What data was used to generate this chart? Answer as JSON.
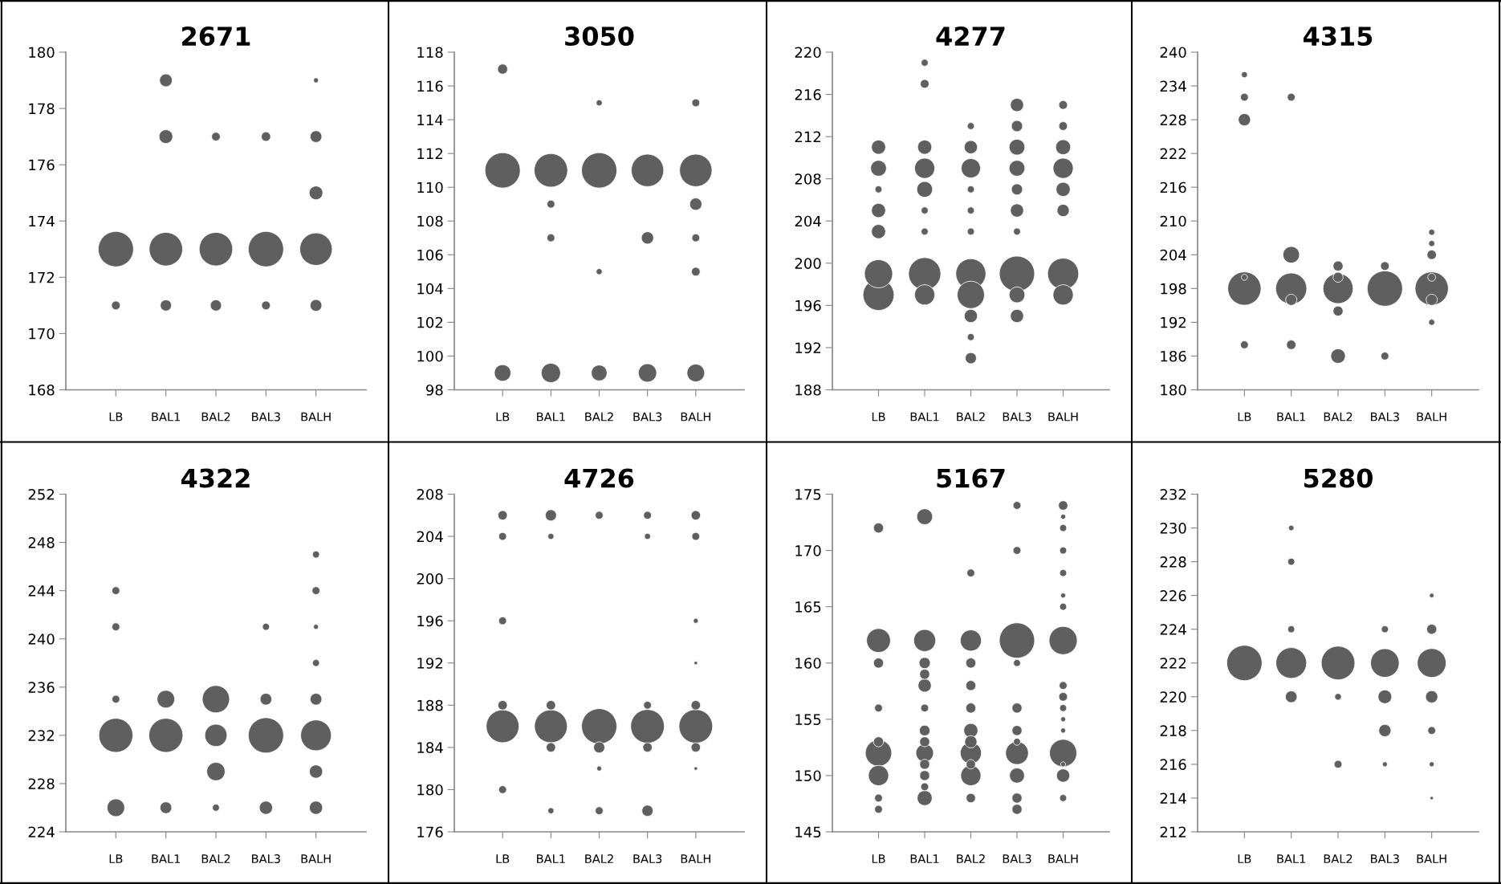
{
  "chart_data": [
    {
      "type": "bubble",
      "title": "2671",
      "categories": [
        "LB",
        "BAL1",
        "BAL2",
        "BAL3",
        "BALH"
      ],
      "ylim": [
        168,
        180
      ],
      "yticks": [
        168,
        170,
        172,
        174,
        176,
        178,
        180
      ],
      "grid": false,
      "series": [
        {
          "color": "#5f5f5f",
          "x": [
            "LB",
            "LB",
            "BAL1",
            "BAL1",
            "BAL1",
            "BAL1",
            "BAL2",
            "BAL2",
            "BAL2",
            "BAL3",
            "BAL3",
            "BAL3",
            "BALH",
            "BALH",
            "BALH",
            "BALH",
            "BALH"
          ],
          "values": [
            173,
            171,
            179,
            177,
            173,
            171,
            177,
            173,
            171,
            177,
            173,
            171,
            179,
            177,
            175,
            173,
            171
          ],
          "sizes": [
            1,
            0.06,
            0.13,
            0.15,
            0.9,
            0.1,
            0.06,
            0.9,
            0.1,
            0.07,
            1,
            0.06,
            0.02,
            0.11,
            0.15,
            0.85,
            0.11
          ]
        }
      ]
    },
    {
      "type": "bubble",
      "title": "3050",
      "categories": [
        "LB",
        "BAL1",
        "BAL2",
        "BAL3",
        "BALH"
      ],
      "ylim": [
        98,
        118
      ],
      "yticks": [
        98,
        100,
        102,
        104,
        106,
        108,
        110,
        112,
        114,
        116,
        118
      ],
      "grid": false,
      "series": [
        {
          "color": "#5f5f5f",
          "x": [
            "LB",
            "LB",
            "LB",
            "BAL1",
            "BAL1",
            "BAL1",
            "BAL1",
            "BAL2",
            "BAL2",
            "BAL2",
            "BAL2",
            "BAL3",
            "BAL3",
            "BAL3",
            "BALH",
            "BALH",
            "BALH",
            "BALH",
            "BALH",
            "BALH"
          ],
          "values": [
            117,
            111,
            99,
            111,
            109,
            107,
            99,
            115,
            111,
            105,
            99,
            111,
            107,
            99,
            115,
            111,
            109,
            107,
            105,
            99
          ],
          "sizes": [
            0.08,
            1,
            0.22,
            0.9,
            0.05,
            0.05,
            0.3,
            0.03,
            1,
            0.03,
            0.2,
            0.85,
            0.12,
            0.27,
            0.05,
            0.85,
            0.12,
            0.05,
            0.06,
            0.25
          ]
        }
      ]
    },
    {
      "type": "bubble",
      "title": "4277",
      "categories": [
        "LB",
        "BAL1",
        "BAL2",
        "BAL3",
        "BALH"
      ],
      "ylim": [
        188,
        220
      ],
      "yticks": [
        188,
        192,
        196,
        200,
        204,
        208,
        212,
        216,
        220
      ],
      "grid": false,
      "series": [
        {
          "color": "#5f5f5f",
          "x": [
            "LB",
            "LB",
            "LB",
            "LB",
            "LB",
            "LB",
            "LB",
            "BAL1",
            "BAL1",
            "BAL1",
            "BAL1",
            "BAL1",
            "BAL1",
            "BAL1",
            "BAL1",
            "BAL1",
            "BAL2",
            "BAL2",
            "BAL2",
            "BAL2",
            "BAL2",
            "BAL2",
            "BAL2",
            "BAL2",
            "BAL2",
            "BAL2",
            "BAL2",
            "BAL3",
            "BAL3",
            "BAL3",
            "BAL3",
            "BAL3",
            "BAL3",
            "BAL3",
            "BAL3",
            "BAL3",
            "BAL3",
            "BALH",
            "BALH",
            "BALH",
            "BALH",
            "BALH",
            "BALH",
            "BALH",
            "BALH"
          ],
          "values": [
            211,
            209,
            207,
            205,
            203,
            199,
            197,
            219,
            217,
            211,
            209,
            207,
            205,
            203,
            199,
            197,
            213,
            211,
            209,
            207,
            205,
            203,
            199,
            197,
            195,
            193,
            191,
            215,
            213,
            211,
            209,
            207,
            205,
            203,
            199,
            197,
            195,
            215,
            213,
            211,
            209,
            207,
            205,
            199,
            197
          ],
          "sizes": [
            0.16,
            0.2,
            0.04,
            0.16,
            0.16,
            0.64,
            0.78,
            0.04,
            0.06,
            0.16,
            0.33,
            0.2,
            0.04,
            0.04,
            0.84,
            0.33,
            0.04,
            0.14,
            0.3,
            0.04,
            0.04,
            0.04,
            0.73,
            0.6,
            0.14,
            0.04,
            0.1,
            0.14,
            0.1,
            0.2,
            0.2,
            0.1,
            0.14,
            0.04,
            1,
            0.2,
            0.14,
            0.06,
            0.06,
            0.18,
            0.33,
            0.16,
            0.12,
            0.78,
            0.33
          ]
        }
      ]
    },
    {
      "type": "bubble",
      "title": "4315",
      "categories": [
        "LB",
        "BAL1",
        "BAL2",
        "BAL3",
        "BALH"
      ],
      "ylim": [
        180,
        240
      ],
      "yticks": [
        180,
        186,
        192,
        198,
        204,
        210,
        216,
        222,
        228,
        234,
        240
      ],
      "grid": false,
      "series": [
        {
          "color": "#5f5f5f",
          "x": [
            "LB",
            "LB",
            "LB",
            "LB",
            "LB",
            "LB",
            "BAL1",
            "BAL1",
            "BAL1",
            "BAL1",
            "BAL1",
            "BAL2",
            "BAL2",
            "BAL2",
            "BAL2",
            "BAL2",
            "BAL3",
            "BAL3",
            "BAL3",
            "BALH",
            "BALH",
            "BALH",
            "BALH",
            "BALH",
            "BALH",
            "BALH"
          ],
          "values": [
            236,
            232,
            228,
            200,
            198,
            188,
            232,
            204,
            198,
            196,
            188,
            202,
            200,
            198,
            194,
            186,
            202,
            198,
            186,
            208,
            206,
            204,
            200,
            198,
            196,
            192
          ],
          "sizes": [
            0.03,
            0.05,
            0.12,
            0.03,
            0.89,
            0.05,
            0.05,
            0.22,
            0.78,
            0.1,
            0.07,
            0.08,
            0.08,
            0.73,
            0.08,
            0.17,
            0.06,
            1,
            0.05,
            0.03,
            0.03,
            0.07,
            0.05,
            0.89,
            0.1,
            0.03
          ]
        }
      ]
    },
    {
      "type": "bubble",
      "title": "4322",
      "categories": [
        "LB",
        "BAL1",
        "BAL2",
        "BAL3",
        "BALH"
      ],
      "ylim": [
        224,
        252
      ],
      "yticks": [
        224,
        228,
        232,
        236,
        240,
        244,
        248,
        252
      ],
      "grid": false,
      "series": [
        {
          "color": "#5f5f5f",
          "x": [
            "LB",
            "LB",
            "LB",
            "LB",
            "LB",
            "BAL1",
            "BAL1",
            "BAL1",
            "BAL2",
            "BAL2",
            "BAL2",
            "BAL2",
            "BAL3",
            "BAL3",
            "BAL3",
            "BAL3",
            "BALH",
            "BALH",
            "BALH",
            "BALH",
            "BALH",
            "BALH",
            "BALH",
            "BALH"
          ],
          "values": [
            244,
            241,
            235,
            232,
            226,
            235,
            232,
            226,
            235,
            232,
            229,
            226,
            241,
            235,
            232,
            226,
            247,
            244,
            241,
            238,
            235,
            232,
            229,
            226
          ],
          "sizes": [
            0.05,
            0.05,
            0.05,
            0.93,
            0.25,
            0.25,
            0.93,
            0.11,
            0.6,
            0.4,
            0.27,
            0.04,
            0.04,
            0.11,
            1,
            0.14,
            0.04,
            0.05,
            0.02,
            0.04,
            0.11,
            0.76,
            0.14,
            0.14
          ]
        }
      ]
    },
    {
      "type": "bubble",
      "title": "4726",
      "categories": [
        "LB",
        "BAL1",
        "BAL2",
        "BAL3",
        "BALH"
      ],
      "ylim": [
        176,
        208
      ],
      "yticks": [
        176,
        180,
        184,
        188,
        192,
        196,
        200,
        204,
        208
      ],
      "grid": false,
      "series": [
        {
          "color": "#5f5f5f",
          "x": [
            "LB",
            "LB",
            "LB",
            "LB",
            "LB",
            "LB",
            "BAL1",
            "BAL1",
            "BAL1",
            "BAL1",
            "BAL1",
            "BAL1",
            "BAL2",
            "BAL2",
            "BAL2",
            "BAL2",
            "BAL2",
            "BAL3",
            "BAL3",
            "BAL3",
            "BAL3",
            "BAL3",
            "BAL3",
            "BALH",
            "BALH",
            "BALH",
            "BALH",
            "BALH",
            "BALH",
            "BALH",
            "BALH"
          ],
          "values": [
            206,
            204,
            196,
            188,
            186,
            180,
            206,
            204,
            188,
            186,
            184,
            178,
            206,
            186,
            184,
            182,
            178,
            206,
            204,
            188,
            186,
            184,
            178,
            206,
            204,
            196,
            192,
            188,
            186,
            184,
            182
          ],
          "sizes": [
            0.07,
            0.05,
            0.05,
            0.07,
            0.87,
            0.05,
            0.1,
            0.03,
            0.07,
            0.87,
            0.07,
            0.03,
            0.05,
            1,
            0.1,
            0.02,
            0.05,
            0.05,
            0.03,
            0.05,
            0.91,
            0.07,
            0.1,
            0.07,
            0.05,
            0.02,
            0.01,
            0.07,
            0.91,
            0.07,
            0.01
          ]
        }
      ]
    },
    {
      "type": "bubble",
      "title": "5167",
      "categories": [
        "LB",
        "BAL1",
        "BAL2",
        "BAL3",
        "BALH"
      ],
      "ylim": [
        145,
        175
      ],
      "yticks": [
        145,
        150,
        155,
        160,
        165,
        170,
        175
      ],
      "grid": false,
      "series": [
        {
          "color": "#5f5f5f",
          "x": [
            "LB",
            "LB",
            "LB",
            "LB",
            "LB",
            "LB",
            "LB",
            "LB",
            "LB",
            "BAL1",
            "BAL1",
            "BAL1",
            "BAL1",
            "BAL1",
            "BAL1",
            "BAL1",
            "BAL1",
            "BAL1",
            "BAL1",
            "BAL1",
            "BAL1",
            "BAL1",
            "BAL2",
            "BAL2",
            "BAL2",
            "BAL2",
            "BAL2",
            "BAL2",
            "BAL2",
            "BAL2",
            "BAL2",
            "BAL2",
            "BAL2",
            "BAL3",
            "BAL3",
            "BAL3",
            "BAL3",
            "BAL3",
            "BAL3",
            "BAL3",
            "BAL3",
            "BAL3",
            "BAL3",
            "BAL3",
            "BALH",
            "BALH",
            "BALH",
            "BALH",
            "BALH",
            "BALH",
            "BALH",
            "BALH",
            "BALH",
            "BALH",
            "BALH",
            "BALH",
            "BALH",
            "BALH",
            "BALH",
            "BALH",
            "BALH"
          ],
          "values": [
            172,
            162,
            160,
            156,
            153,
            152,
            150,
            148,
            147,
            173,
            162,
            160,
            159,
            158,
            156,
            154,
            153,
            152,
            151,
            150,
            149,
            148,
            168,
            162,
            160,
            158,
            156,
            154,
            153,
            152,
            151,
            150,
            148,
            174,
            170,
            162,
            160,
            156,
            154,
            153,
            152,
            150,
            148,
            147,
            174,
            173,
            172,
            170,
            168,
            166,
            165,
            162,
            158,
            157,
            156,
            155,
            154,
            152,
            151,
            150,
            148
          ],
          "sizes": [
            0.08,
            0.46,
            0.08,
            0.05,
            0.08,
            0.56,
            0.33,
            0.05,
            0.05,
            0.2,
            0.39,
            0.1,
            0.08,
            0.14,
            0.05,
            0.09,
            0.08,
            0.25,
            0.08,
            0.08,
            0.05,
            0.18,
            0.05,
            0.36,
            0.08,
            0.08,
            0.08,
            0.16,
            0.12,
            0.36,
            0.07,
            0.33,
            0.07,
            0.05,
            0.05,
            1,
            0.04,
            0.08,
            0.08,
            0.04,
            0.42,
            0.18,
            0.08,
            0.08,
            0.07,
            0.02,
            0.04,
            0.04,
            0.04,
            0.02,
            0.04,
            0.64,
            0.05,
            0.06,
            0.04,
            0.02,
            0.02,
            0.6,
            0.02,
            0.14,
            0.04
          ]
        }
      ]
    },
    {
      "type": "bubble",
      "title": "5280",
      "categories": [
        "LB",
        "BAL1",
        "BAL2",
        "BAL3",
        "BALH"
      ],
      "ylim": [
        212,
        232
      ],
      "yticks": [
        212,
        214,
        216,
        218,
        220,
        222,
        224,
        226,
        228,
        230,
        232
      ],
      "grid": false,
      "series": [
        {
          "color": "#5f5f5f",
          "x": [
            "LB",
            "BAL1",
            "BAL1",
            "BAL1",
            "BAL1",
            "BAL1",
            "BAL2",
            "BAL2",
            "BAL2",
            "BAL3",
            "BAL3",
            "BAL3",
            "BAL3",
            "BAL3",
            "BALH",
            "BALH",
            "BALH",
            "BALH",
            "BALH",
            "BALH",
            "BALH"
          ],
          "values": [
            222,
            230,
            228,
            224,
            222,
            220,
            222,
            220,
            216,
            224,
            222,
            220,
            218,
            216,
            226,
            224,
            222,
            220,
            218,
            216,
            214
          ],
          "sizes": [
            1,
            0.024,
            0.04,
            0.04,
            0.76,
            0.11,
            0.91,
            0.036,
            0.05,
            0.04,
            0.66,
            0.15,
            0.12,
            0.02,
            0.017,
            0.08,
            0.67,
            0.12,
            0.05,
            0.02,
            0.009
          ]
        }
      ]
    }
  ]
}
